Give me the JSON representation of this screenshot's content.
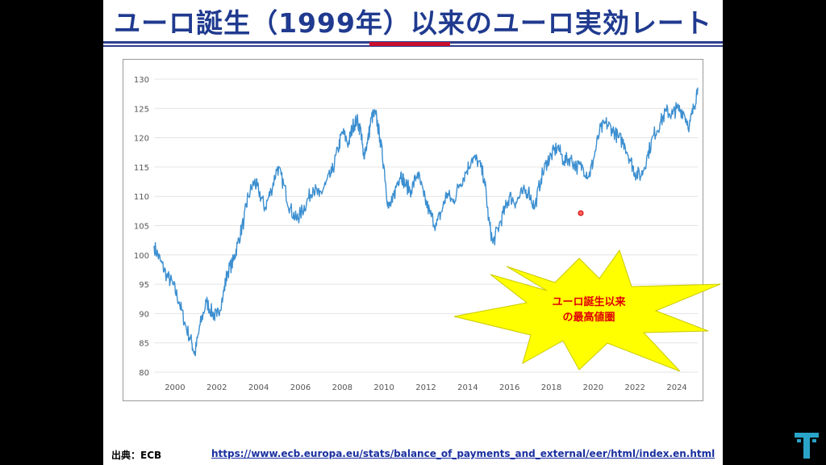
{
  "slide": {
    "title": "ユーロ誕生（1999年）以来のユーロ実効レート",
    "source_label": "出典：ECB",
    "source_url": "https://www.ecb.europa.eu/stats/balance_of_payments_and_external/eer/html/index.en.html",
    "accent_colors": {
      "title": "#1f3a8f",
      "rule_blue": "#2d3f8f",
      "rule_red": "#c8102e",
      "line": "#3c8fd0",
      "burst": "#ffff00",
      "burst_text": "#e00000"
    }
  },
  "callout": {
    "line1": "ユーロ誕生以来",
    "line2": "の最高値圏"
  },
  "logo": {
    "icon": "t-logo-icon"
  },
  "chart_data": {
    "type": "line",
    "title": "",
    "xlabel": "",
    "ylabel": "",
    "xlim": [
      1999.0,
      2025.0
    ],
    "ylim": [
      80,
      130
    ],
    "yticks": [
      80,
      85,
      90,
      95,
      100,
      105,
      110,
      115,
      120,
      125,
      130
    ],
    "xticks": [
      2000,
      2002,
      2004,
      2006,
      2008,
      2010,
      2012,
      2014,
      2016,
      2018,
      2020,
      2022,
      2024
    ],
    "grid": true,
    "legend": "none",
    "series": [
      {
        "color": "#3c8fd0",
        "x": [
          1999.0,
          1999.3,
          1999.6,
          1999.9,
          2000.2,
          2000.5,
          2000.8,
          2000.95,
          2001.2,
          2001.5,
          2001.8,
          2002.0,
          2002.3,
          2002.5,
          2002.8,
          2003.0,
          2003.3,
          2003.5,
          2003.8,
          2004.0,
          2004.3,
          2004.6,
          2004.9,
          2005.2,
          2005.5,
          2005.8,
          2006.0,
          2006.3,
          2006.6,
          2006.9,
          2007.2,
          2007.5,
          2007.8,
          2008.0,
          2008.3,
          2008.5,
          2008.7,
          2008.9,
          2009.0,
          2009.2,
          2009.4,
          2009.6,
          2009.8,
          2010.0,
          2010.2,
          2010.4,
          2010.6,
          2010.8,
          2011.0,
          2011.3,
          2011.6,
          2011.9,
          2012.2,
          2012.5,
          2012.8,
          2013.0,
          2013.3,
          2013.6,
          2013.9,
          2014.2,
          2014.5,
          2014.8,
          2015.0,
          2015.2,
          2015.5,
          2015.8,
          2016.0,
          2016.3,
          2016.6,
          2016.9,
          2017.2,
          2017.5,
          2017.8,
          2018.0,
          2018.3,
          2018.6,
          2018.9,
          2019.2,
          2019.5,
          2019.8,
          2020.0,
          2020.3,
          2020.6,
          2020.9,
          2021.2,
          2021.5,
          2021.8,
          2022.0,
          2022.3,
          2022.6,
          2022.9,
          2023.2,
          2023.5,
          2023.8,
          2024.0,
          2024.3,
          2024.6,
          2024.8,
          2025.0
        ],
        "y": [
          101.5,
          99.0,
          96.5,
          95.0,
          92.0,
          88.0,
          85.0,
          83.0,
          88.0,
          92.0,
          90.0,
          89.5,
          93.0,
          97.0,
          99.0,
          102.0,
          106.0,
          110.0,
          112.5,
          111.0,
          108.0,
          111.0,
          115.0,
          112.0,
          108.0,
          106.0,
          107.0,
          109.0,
          111.5,
          110.0,
          112.0,
          114.0,
          118.0,
          121.0,
          119.0,
          122.0,
          123.0,
          121.0,
          117.0,
          119.0,
          123.5,
          124.0,
          120.0,
          115.0,
          108.0,
          109.0,
          112.0,
          114.0,
          112.0,
          111.0,
          114.0,
          110.0,
          107.0,
          105.0,
          108.0,
          110.5,
          109.0,
          112.0,
          114.0,
          116.5,
          116.0,
          113.0,
          106.0,
          102.0,
          105.0,
          108.0,
          110.0,
          109.0,
          110.5,
          111.0,
          108.0,
          113.0,
          116.0,
          117.0,
          118.5,
          116.0,
          116.5,
          115.0,
          115.0,
          113.5,
          116.0,
          121.0,
          122.5,
          121.5,
          120.0,
          119.0,
          116.0,
          114.0,
          113.5,
          117.0,
          120.5,
          122.5,
          124.5,
          124.0,
          125.0,
          124.5,
          122.0,
          125.0,
          128.5
        ]
      }
    ]
  }
}
